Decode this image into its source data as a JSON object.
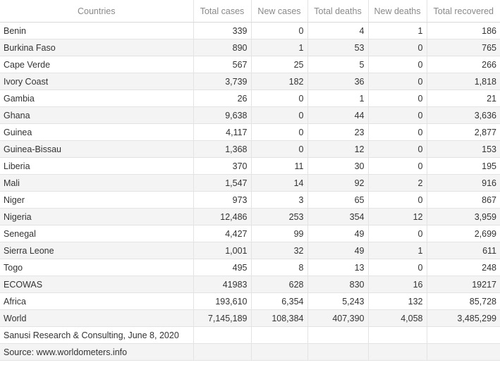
{
  "columns": [
    "Countries",
    "Total cases",
    "New cases",
    "Total deaths",
    "New deaths",
    "Total recovered"
  ],
  "rows": [
    [
      "Benin",
      "339",
      "0",
      "4",
      "1",
      "186"
    ],
    [
      "Burkina Faso",
      "890",
      "1",
      "53",
      "0",
      "765"
    ],
    [
      "Cape Verde",
      "567",
      "25",
      "5",
      "0",
      "266"
    ],
    [
      "Ivory Coast",
      "3,739",
      "182",
      "36",
      "0",
      "1,818"
    ],
    [
      "Gambia",
      "26",
      "0",
      "1",
      "0",
      "21"
    ],
    [
      "Ghana",
      "9,638",
      "0",
      "44",
      "0",
      "3,636"
    ],
    [
      "Guinea",
      "4,117",
      "0",
      "23",
      "0",
      "2,877"
    ],
    [
      "Guinea-Bissau",
      "1,368",
      "0",
      "12",
      "0",
      "153"
    ],
    [
      "Liberia",
      "370",
      "11",
      "30",
      "0",
      "195"
    ],
    [
      "Mali",
      "1,547",
      "14",
      "92",
      "2",
      "916"
    ],
    [
      "Niger",
      "973",
      "3",
      "65",
      "0",
      "867"
    ],
    [
      "Nigeria",
      "12,486",
      "253",
      "354",
      "12",
      "3,959"
    ],
    [
      "Senegal",
      "4,427",
      "99",
      "49",
      "0",
      "2,699"
    ],
    [
      "Sierra Leone",
      "1,001",
      "32",
      "49",
      "1",
      "611"
    ],
    [
      "Togo",
      "495",
      "8",
      "13",
      "0",
      "248"
    ],
    [
      "ECOWAS",
      "41983",
      "628",
      "830",
      "16",
      "19217"
    ],
    [
      "Africa",
      "193,610",
      "6,354",
      "5,243",
      "132",
      "85,728"
    ],
    [
      "World",
      "7,145,189",
      "108,384",
      "407,390",
      "4,058",
      "3,485,299"
    ],
    [
      "Sanusi Research & Consulting, June 8, 2020",
      "",
      "",
      "",
      "",
      ""
    ],
    [
      "Source: www.worldometers.info",
      "",
      "",
      "",
      "",
      ""
    ]
  ]
}
